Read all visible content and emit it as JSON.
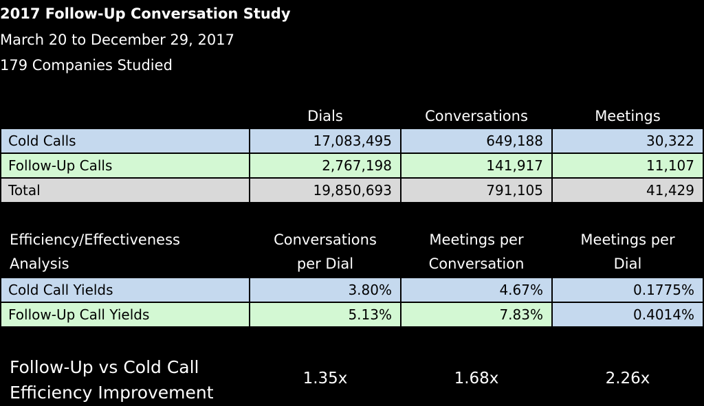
{
  "colors": {
    "background": "#000000",
    "cold_row": "#c5d9ee",
    "follow_row": "#d3f8d3",
    "total_row": "#d9d9d9"
  },
  "title": {
    "line1": "2017 Follow-Up Conversation Study",
    "line2": "March 20 to December 29, 2017",
    "line3": "179 Companies Studied"
  },
  "chart_data": {
    "type": "table",
    "volume_table": {
      "columns": [
        "Dials",
        "Conversations",
        "Meetings"
      ],
      "rows": [
        {
          "label": "Cold Calls",
          "values": [
            "17,083,495",
            "649,188",
            "30,322"
          ]
        },
        {
          "label": "Follow-Up Calls",
          "values": [
            "2,767,198",
            "141,917",
            "11,107"
          ]
        },
        {
          "label": "Total",
          "values": [
            "19,850,693",
            "791,105",
            "41,429"
          ]
        }
      ]
    },
    "yield_table": {
      "header_label": [
        "Efficiency/Effectiveness",
        "Analysis"
      ],
      "columns": [
        [
          "Conversations",
          "per Dial"
        ],
        [
          "Meetings per",
          "Conversation"
        ],
        [
          "Meetings per",
          "Dial"
        ]
      ],
      "rows": [
        {
          "label": "Cold Call Yields",
          "values": [
            "3.80%",
            "4.67%",
            "0.1775%"
          ]
        },
        {
          "label": "Follow-Up Call Yields",
          "values": [
            "5.13%",
            "7.83%",
            "0.4014%"
          ]
        }
      ]
    },
    "improvement": {
      "label": [
        "Follow-Up vs Cold Call",
        "Efficiency Improvement"
      ],
      "values": [
        "1.35x",
        "1.68x",
        "2.26x"
      ]
    }
  }
}
